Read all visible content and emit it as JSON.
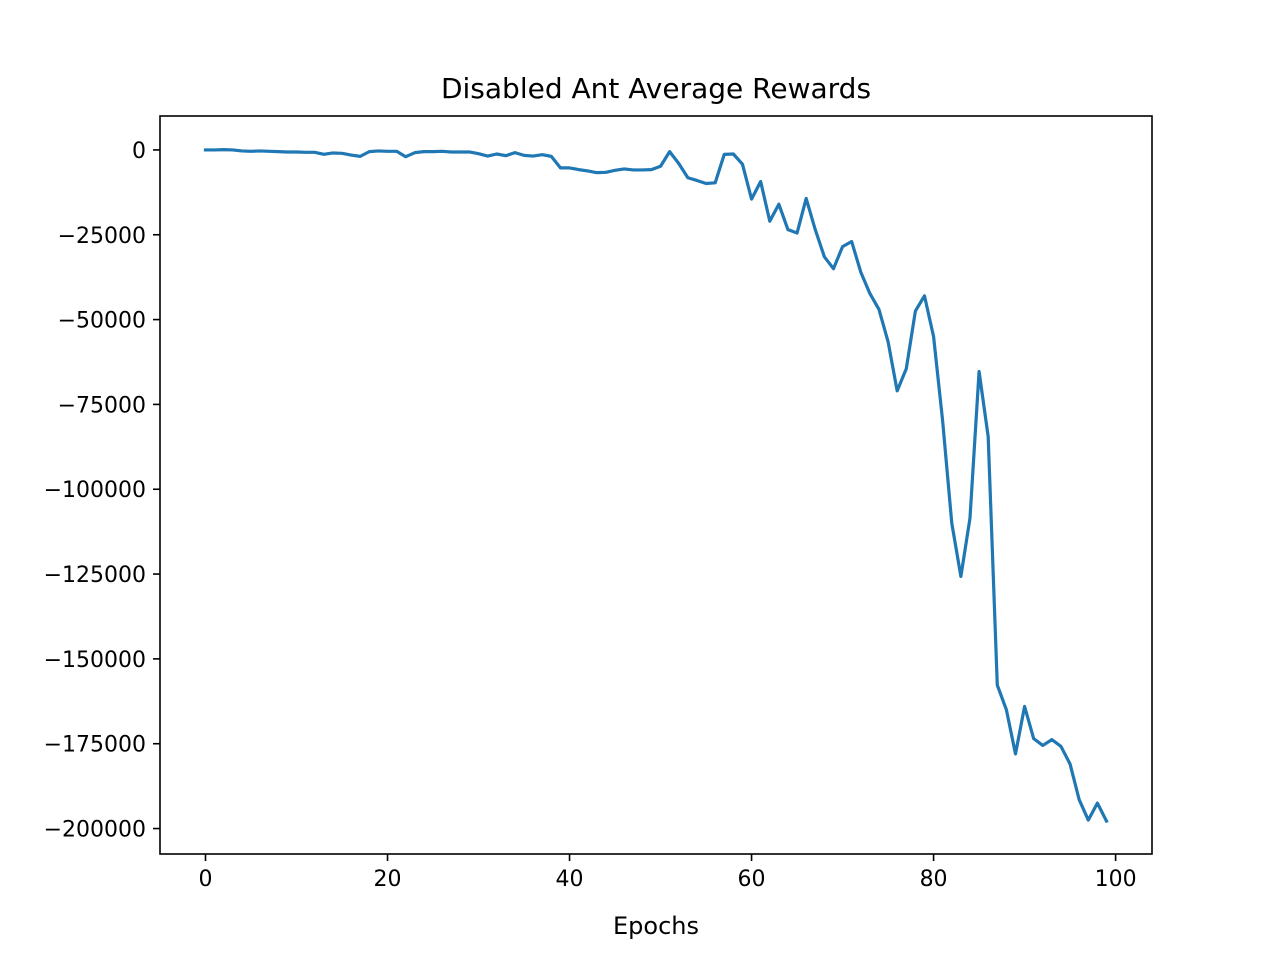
{
  "chart_data": {
    "type": "line",
    "title": "Disabled Ant Average Rewards",
    "xlabel": "Epochs",
    "ylabel": "",
    "xlim": [
      -5,
      104
    ],
    "ylim": [
      -207500,
      10000
    ],
    "xticks": [
      0,
      20,
      40,
      60,
      80,
      100
    ],
    "xtick_labels": [
      "0",
      "20",
      "40",
      "60",
      "80",
      "100"
    ],
    "yticks": [
      0,
      -25000,
      -50000,
      -75000,
      -100000,
      -125000,
      -150000,
      -175000,
      -200000
    ],
    "ytick_labels": [
      "0",
      "−25000",
      "−50000",
      "−75000",
      "−100000",
      "−125000",
      "−150000",
      "−175000",
      "−200000"
    ],
    "grid": false,
    "line_color": "#1f77b4",
    "series": [
      {
        "x": [
          0,
          1,
          2,
          3,
          4,
          5,
          6,
          7,
          8,
          9,
          10,
          11,
          12,
          13,
          14,
          15,
          16,
          17,
          18,
          19,
          20,
          21,
          22,
          23,
          24,
          25,
          26,
          27,
          28,
          29,
          30,
          31,
          32,
          33,
          34,
          35,
          36,
          37,
          38,
          39,
          40,
          41,
          42,
          43,
          44,
          45,
          46,
          47,
          48,
          49,
          50,
          51,
          52,
          53,
          54,
          55,
          56,
          57,
          58,
          59,
          60,
          61,
          62,
          63,
          64,
          65,
          66,
          67,
          68,
          69,
          70,
          71,
          72,
          73,
          74,
          75,
          76,
          77,
          78,
          79,
          80,
          81,
          82,
          83,
          84,
          85,
          86,
          87,
          88,
          89,
          90,
          91,
          92,
          93,
          94,
          95,
          96,
          97,
          98,
          99
        ],
        "values": [
          0,
          0,
          100,
          0,
          -300,
          -400,
          -300,
          -400,
          -500,
          -600,
          -600,
          -700,
          -700,
          -1300,
          -900,
          -1000,
          -1500,
          -1900,
          -500,
          -300,
          -400,
          -400,
          -2000,
          -800,
          -500,
          -500,
          -400,
          -600,
          -600,
          -600,
          -1100,
          -1800,
          -1200,
          -1700,
          -800,
          -1600,
          -1800,
          -1400,
          -1900,
          -5300,
          -5300,
          -5800,
          -6200,
          -6700,
          -6600,
          -6000,
          -5600,
          -5900,
          -5900,
          -5800,
          -4800,
          -500,
          -4000,
          -8200,
          -9000,
          -9900,
          -9700,
          -1300,
          -1200,
          -4200,
          -14500,
          -9300,
          -21000,
          -16000,
          -23500,
          -24500,
          -14300,
          -23500,
          -31500,
          -35000,
          -28500,
          -27000,
          -36000,
          -42300,
          -47000,
          -56500,
          -71000,
          -64500,
          -47500,
          -43000,
          -55000,
          -80000,
          -110000,
          -125700,
          -108500,
          -65300,
          -84500,
          -157700,
          -165000,
          -178000,
          -164000,
          -173500,
          -175500,
          -173800,
          -175800,
          -181000,
          -191500,
          -197500,
          -192500,
          -197800
        ]
      }
    ]
  }
}
